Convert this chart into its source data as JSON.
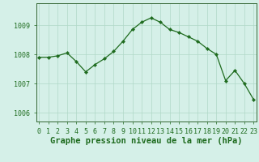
{
  "x": [
    0,
    1,
    2,
    3,
    4,
    5,
    6,
    7,
    8,
    9,
    10,
    11,
    12,
    13,
    14,
    15,
    16,
    17,
    18,
    19,
    20,
    21,
    22,
    23
  ],
  "y": [
    1007.9,
    1007.9,
    1007.95,
    1008.05,
    1007.75,
    1007.4,
    1007.65,
    1007.85,
    1008.1,
    1008.45,
    1008.85,
    1009.1,
    1009.25,
    1009.1,
    1008.85,
    1008.75,
    1008.6,
    1008.45,
    1008.2,
    1008.0,
    1007.1,
    1007.45,
    1007.0,
    1006.45
  ],
  "line_color": "#1e6b1e",
  "marker": "D",
  "marker_size": 2.2,
  "bg_color": "#d5f0e8",
  "plot_bg_color": "#d5f0e8",
  "grid_color": "#b0d8c8",
  "title": "Graphe pression niveau de la mer (hPa)",
  "xlabel_ticks": [
    "0",
    "1",
    "2",
    "3",
    "4",
    "5",
    "6",
    "7",
    "8",
    "9",
    "10",
    "11",
    "12",
    "13",
    "14",
    "15",
    "16",
    "17",
    "18",
    "19",
    "20",
    "21",
    "22",
    "23"
  ],
  "yticks": [
    1006,
    1007,
    1008,
    1009
  ],
  "ylim": [
    1005.7,
    1009.75
  ],
  "xlim": [
    -0.3,
    23.3
  ],
  "title_fontsize": 7.5,
  "tick_fontsize": 6.0,
  "label_color": "#1e6b1e"
}
